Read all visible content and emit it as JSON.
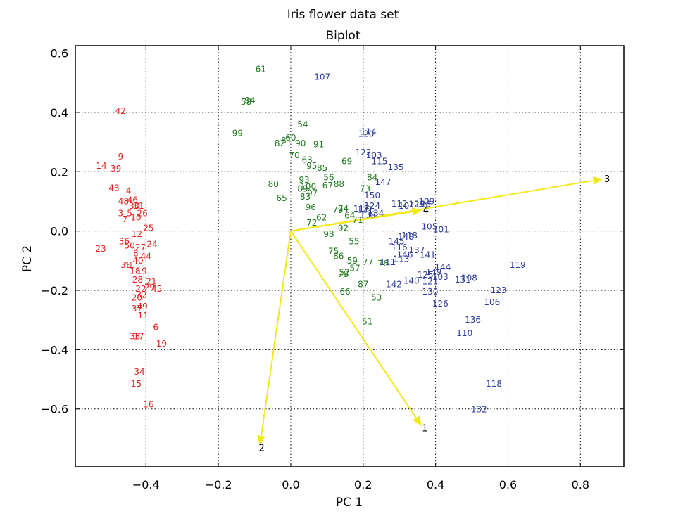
{
  "chart_data": {
    "type": "scatter",
    "title": "Iris flower data set",
    "subtitle": "Biplot",
    "xlabel": "PC 1",
    "ylabel": "PC 2",
    "xlim": [
      -0.595,
      0.92
    ],
    "ylim": [
      -0.795,
      0.625
    ],
    "xticks": [
      -0.4,
      -0.2,
      0.0,
      0.2,
      0.4,
      0.6,
      0.8
    ],
    "yticks": [
      -0.6,
      -0.4,
      -0.2,
      0.0,
      0.2,
      0.4,
      0.6
    ],
    "xtick_labels": [
      "−0.4",
      "−0.2",
      "0.0",
      "0.2",
      "0.4",
      "0.6",
      "0.8"
    ],
    "ytick_labels": [
      "−0.6",
      "−0.4",
      "−0.2",
      "0.0",
      "0.2",
      "0.4",
      "0.6"
    ],
    "grid": true,
    "colors": {
      "setosa": "#e8211d",
      "versicolor": "#1e7a1e",
      "virginica": "#2c3a9a",
      "vectors": "#f2e81c"
    },
    "series": [
      {
        "color": "#e8211d",
        "points": [
          [
            "42",
            -0.47,
            0.405
          ],
          [
            "9",
            -0.47,
            0.25
          ],
          [
            "14",
            -0.523,
            0.22
          ],
          [
            "39",
            -0.483,
            0.21
          ],
          [
            "43",
            -0.488,
            0.145
          ],
          [
            "4",
            -0.448,
            0.135
          ],
          [
            "46",
            -0.437,
            0.105
          ],
          [
            "48",
            -0.462,
            0.1
          ],
          [
            "30",
            -0.432,
            0.085
          ],
          [
            "31",
            -0.42,
            0.085
          ],
          [
            "3",
            -0.47,
            0.06
          ],
          [
            "5",
            -0.445,
            0.06
          ],
          [
            "26",
            -0.41,
            0.06
          ],
          [
            "7",
            -0.458,
            0.04
          ],
          [
            "10",
            -0.428,
            0.045
          ],
          [
            "25",
            -0.393,
            0.01
          ],
          [
            "12",
            -0.425,
            -0.01
          ],
          [
            "36",
            -0.46,
            -0.035
          ],
          [
            "23",
            -0.525,
            -0.06
          ],
          [
            "27",
            -0.415,
            -0.055
          ],
          [
            "24",
            -0.383,
            -0.045
          ],
          [
            "50",
            -0.445,
            -0.05
          ],
          [
            "8",
            -0.428,
            -0.075
          ],
          [
            "44",
            -0.4,
            -0.085
          ],
          [
            "40",
            -0.422,
            -0.1
          ],
          [
            "38",
            -0.455,
            -0.115
          ],
          [
            "41",
            -0.447,
            -0.115
          ],
          [
            "18",
            -0.43,
            -0.135
          ],
          [
            "19",
            -0.412,
            -0.135
          ],
          [
            "28",
            -0.423,
            -0.165
          ],
          [
            "21",
            -0.385,
            -0.17
          ],
          [
            "22",
            -0.414,
            -0.195
          ],
          [
            "29",
            -0.39,
            -0.19
          ],
          [
            "45",
            -0.37,
            -0.195
          ],
          [
            "20",
            -0.425,
            -0.225
          ],
          [
            "32",
            -0.412,
            -0.215
          ],
          [
            "49",
            -0.41,
            -0.255
          ],
          [
            "37",
            -0.425,
            -0.262
          ],
          [
            "11",
            -0.408,
            -0.285
          ],
          [
            "6",
            -0.373,
            -0.325
          ],
          [
            "33",
            -0.43,
            -0.355
          ],
          [
            "17",
            -0.42,
            -0.355
          ],
          [
            "19",
            -0.357,
            -0.38
          ],
          [
            "34",
            -0.418,
            -0.475
          ],
          [
            "15",
            -0.427,
            -0.515
          ],
          [
            "16",
            -0.393,
            -0.585
          ]
        ]
      },
      {
        "color": "#1e7a1e",
        "points": [
          [
            "61",
            -0.083,
            0.545
          ],
          [
            "58",
            -0.123,
            0.435
          ],
          [
            "94",
            -0.113,
            0.44
          ],
          [
            "99",
            -0.147,
            0.33
          ],
          [
            "54",
            0.033,
            0.36
          ],
          [
            "60",
            0.0,
            0.315
          ],
          [
            "81",
            -0.012,
            0.305
          ],
          [
            "82",
            -0.03,
            0.295
          ],
          [
            "90",
            0.027,
            0.295
          ],
          [
            "91",
            0.077,
            0.292
          ],
          [
            "70",
            0.01,
            0.255
          ],
          [
            "63",
            0.045,
            0.24
          ],
          [
            "69",
            0.155,
            0.235
          ],
          [
            "95",
            0.058,
            0.22
          ],
          [
            "85",
            0.087,
            0.212
          ],
          [
            "56",
            0.105,
            0.18
          ],
          [
            "93",
            0.037,
            0.172
          ],
          [
            "80",
            -0.048,
            0.158
          ],
          [
            "88",
            0.133,
            0.158
          ],
          [
            "67",
            0.102,
            0.153
          ],
          [
            "100",
            0.048,
            0.15
          ],
          [
            "89",
            0.033,
            0.142
          ],
          [
            "97",
            0.06,
            0.128
          ],
          [
            "83",
            0.04,
            0.115
          ],
          [
            "65",
            -0.025,
            0.11
          ],
          [
            "96",
            0.055,
            0.08
          ],
          [
            "79",
            0.13,
            0.07
          ],
          [
            "74",
            0.145,
            0.075
          ],
          [
            "64",
            0.163,
            0.052
          ],
          [
            "71",
            0.185,
            0.037
          ],
          [
            "62",
            0.085,
            0.045
          ],
          [
            "72",
            0.058,
            0.028
          ],
          [
            "92",
            0.145,
            0.01
          ],
          [
            "98",
            0.105,
            -0.01
          ],
          [
            "55",
            0.175,
            -0.035
          ],
          [
            "75",
            0.118,
            -0.068
          ],
          [
            "86",
            0.132,
            -0.085
          ],
          [
            "59",
            0.17,
            -0.1
          ],
          [
            "77",
            0.213,
            -0.105
          ],
          [
            "76",
            0.255,
            -0.11
          ],
          [
            "57",
            0.177,
            -0.125
          ],
          [
            "52",
            0.148,
            -0.14
          ],
          [
            "78",
            0.145,
            -0.145
          ],
          [
            "87",
            0.2,
            -0.18
          ],
          [
            "66",
            0.15,
            -0.205
          ],
          [
            "53",
            0.237,
            -0.225
          ],
          [
            "51",
            0.212,
            -0.305
          ],
          [
            "73",
            0.205,
            0.143
          ],
          [
            "84",
            0.225,
            0.18
          ]
        ]
      },
      {
        "color": "#2c3a9a",
        "points": [
          [
            "107",
            0.087,
            0.52
          ],
          [
            "114",
            0.215,
            0.335
          ],
          [
            "120",
            0.208,
            0.328
          ],
          [
            "122",
            0.2,
            0.265
          ],
          [
            "103",
            0.23,
            0.255
          ],
          [
            "115",
            0.245,
            0.235
          ],
          [
            "135",
            0.29,
            0.215
          ],
          [
            "147",
            0.255,
            0.165
          ],
          [
            "150",
            0.225,
            0.12
          ],
          [
            "112",
            0.3,
            0.092
          ],
          [
            "104",
            0.32,
            0.085
          ],
          [
            "109",
            0.375,
            0.1
          ],
          [
            "128",
            0.365,
            0.09
          ],
          [
            "129",
            0.348,
            0.09
          ],
          [
            "124",
            0.225,
            0.085
          ],
          [
            "117",
            0.195,
            0.075
          ],
          [
            "127",
            0.205,
            0.072
          ],
          [
            "134",
            0.235,
            0.06
          ],
          [
            "139",
            0.213,
            0.055
          ],
          [
            "105",
            0.383,
            0.015
          ],
          [
            "101",
            0.415,
            0.005
          ],
          [
            "148",
            0.318,
            -0.02
          ],
          [
            "118",
            0.328,
            -0.015
          ],
          [
            "145",
            0.292,
            -0.035
          ],
          [
            "116",
            0.3,
            -0.055
          ],
          [
            "137",
            0.348,
            -0.065
          ],
          [
            "146",
            0.315,
            -0.08
          ],
          [
            "141",
            0.378,
            -0.08
          ],
          [
            "113",
            0.305,
            -0.095
          ],
          [
            "111",
            0.268,
            -0.105
          ],
          [
            "144",
            0.42,
            -0.122
          ],
          [
            "149",
            0.395,
            -0.138
          ],
          [
            "125",
            0.372,
            -0.148
          ],
          [
            "103",
            0.413,
            -0.155
          ],
          [
            "108",
            0.493,
            -0.158
          ],
          [
            "131",
            0.475,
            -0.165
          ],
          [
            "140",
            0.333,
            -0.168
          ],
          [
            "121",
            0.385,
            -0.17
          ],
          [
            "142",
            0.285,
            -0.18
          ],
          [
            "119",
            0.627,
            -0.115
          ],
          [
            "130",
            0.385,
            -0.205
          ],
          [
            "123",
            0.574,
            -0.2
          ],
          [
            "106",
            0.556,
            -0.24
          ],
          [
            "126",
            0.413,
            -0.245
          ],
          [
            "136",
            0.503,
            -0.3
          ],
          [
            "110",
            0.48,
            -0.345
          ],
          [
            "118",
            0.561,
            -0.515
          ],
          [
            "132",
            0.52,
            -0.602
          ]
        ]
      }
    ],
    "vectors": [
      {
        "label": "3",
        "x": 0.86,
        "y": 0.175
      },
      {
        "label": "4",
        "x": 0.36,
        "y": 0.07
      },
      {
        "label": "1",
        "x": 0.36,
        "y": -0.655
      },
      {
        "label": "2",
        "x": -0.085,
        "y": -0.72
      }
    ]
  }
}
